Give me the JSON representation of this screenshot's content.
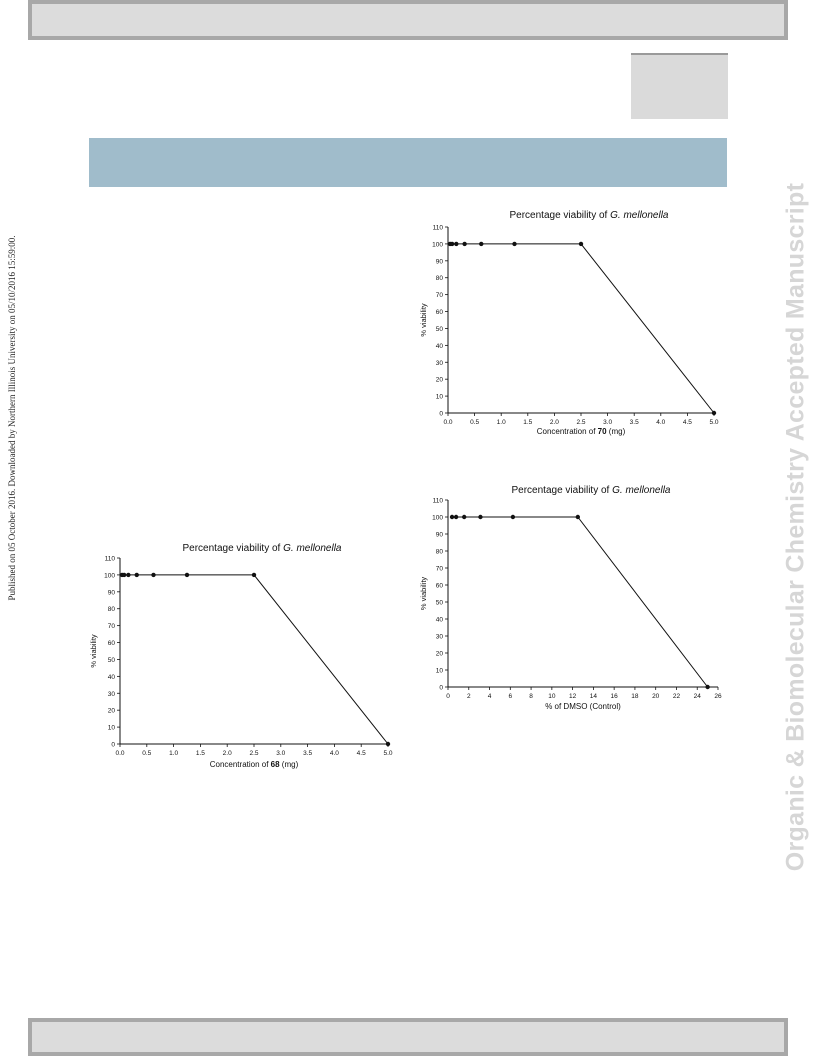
{
  "margin_note": "Published on 05 October 2016. Downloaded by Northern Illinois University on 05/10/2016 15:59:00.",
  "watermark": "Organic & Biomolecular Chemistry Accepted Manuscript",
  "colors": {
    "banner": "#a0bccb",
    "frame": "#a8a8a8",
    "watermark": "#d6d6d6"
  },
  "chart_data": [
    {
      "type": "line",
      "title_prefix": "Percentage viability of ",
      "title_italic": "G. mellonella",
      "xlabel_prefix": "Concentration of ",
      "xlabel_bold": "70",
      "xlabel_suffix": " (mg)",
      "ylabel": "% viability",
      "xlim": [
        0,
        5
      ],
      "ylim": [
        0,
        110
      ],
      "xticks": [
        "0.0",
        "0.5",
        "1.0",
        "1.5",
        "2.0",
        "2.5",
        "3.0",
        "3.5",
        "4.0",
        "4.5",
        "5.0"
      ],
      "yticks": [
        "0",
        "10",
        "20",
        "30",
        "40",
        "50",
        "60",
        "70",
        "80",
        "90",
        "100",
        "110"
      ],
      "x": [
        0.039,
        0.078,
        0.156,
        0.3125,
        0.625,
        1.25,
        2.5,
        5.0
      ],
      "values": [
        100,
        100,
        100,
        100,
        100,
        100,
        100,
        0
      ],
      "grid": false
    },
    {
      "type": "line",
      "title_prefix": "Percentage viability of ",
      "title_italic": "G. mellonella",
      "xlabel_prefix": "% of DMSO (Control)",
      "xlabel_bold": "",
      "xlabel_suffix": "",
      "ylabel": "% viability",
      "xlim": [
        0,
        26
      ],
      "ylim": [
        0,
        110
      ],
      "xticks": [
        "0",
        "2",
        "4",
        "6",
        "8",
        "10",
        "12",
        "14",
        "16",
        "18",
        "20",
        "22",
        "24",
        "26"
      ],
      "yticks": [
        "0",
        "10",
        "20",
        "30",
        "40",
        "50",
        "60",
        "70",
        "80",
        "90",
        "100",
        "110"
      ],
      "x": [
        0.39,
        0.78,
        1.56,
        3.125,
        6.25,
        12.5,
        25
      ],
      "values": [
        100,
        100,
        100,
        100,
        100,
        100,
        0
      ],
      "grid": false
    },
    {
      "type": "line",
      "title_prefix": "Percentage viability of ",
      "title_italic": "G. mellonella",
      "xlabel_prefix": "Concentration of ",
      "xlabel_bold": "68",
      "xlabel_suffix": " (mg)",
      "ylabel": "% viability",
      "xlim": [
        0,
        5
      ],
      "ylim": [
        0,
        110
      ],
      "xticks": [
        "0.0",
        "0.5",
        "1.0",
        "1.5",
        "2.0",
        "2.5",
        "3.0",
        "3.5",
        "4.0",
        "4.5",
        "5.0"
      ],
      "yticks": [
        "0",
        "10",
        "20",
        "30",
        "40",
        "50",
        "60",
        "70",
        "80",
        "90",
        "100",
        "110"
      ],
      "x": [
        0.039,
        0.078,
        0.156,
        0.3125,
        0.625,
        1.25,
        2.5,
        5.0
      ],
      "values": [
        100,
        100,
        100,
        100,
        100,
        100,
        100,
        0
      ],
      "grid": false
    }
  ]
}
